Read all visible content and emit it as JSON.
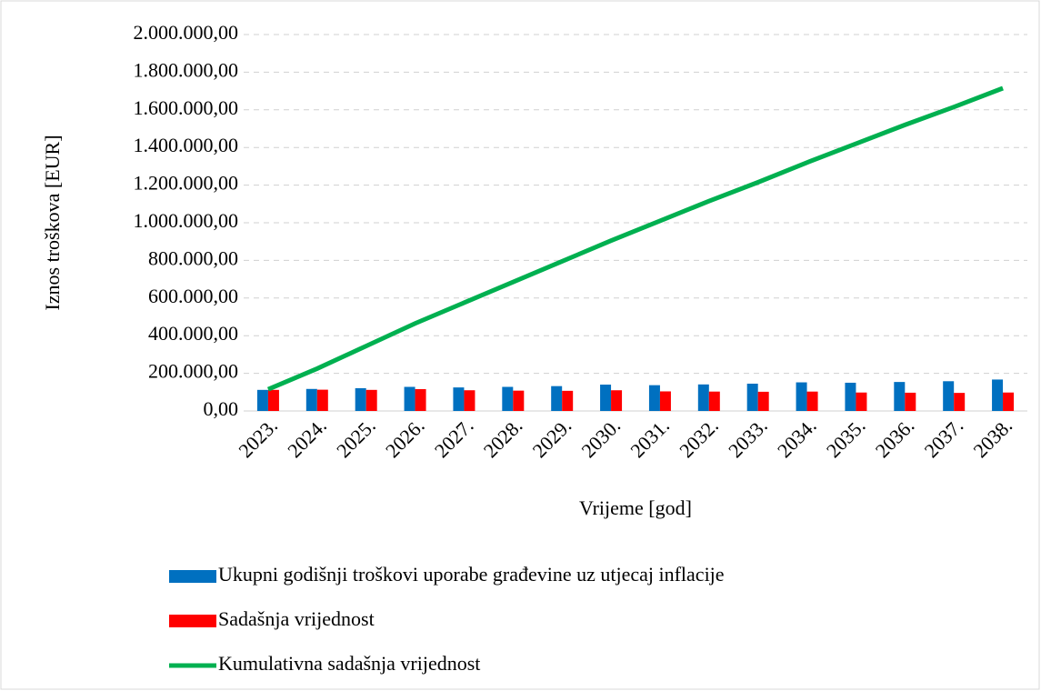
{
  "chart_data": {
    "type": "bar_line",
    "x_axis_label": "Vrijeme [god]",
    "y_axis_label": "Iznos troškova [EUR]",
    "categories": [
      "2023.",
      "2024.",
      "2025.",
      "2026.",
      "2027.",
      "2028.",
      "2029.",
      "2030.",
      "2031.",
      "2032.",
      "2033.",
      "2034.",
      "2035.",
      "2036.",
      "2037.",
      "2038."
    ],
    "series": [
      {
        "name": "Ukupni godišnji troškovi uporabe građevine uz utjecaj inflacije",
        "type": "bar",
        "color": "#0070c0",
        "values": [
          112000,
          117000,
          121000,
          128000,
          125000,
          128000,
          132000,
          140000,
          137000,
          141000,
          145000,
          152000,
          150000,
          154000,
          158000,
          167000
        ]
      },
      {
        "name": "Sadašnja vrijednost",
        "type": "bar",
        "color": "#ff0000",
        "values": [
          112000,
          113000,
          112000,
          116000,
          110000,
          108000,
          107000,
          110000,
          104000,
          103000,
          102000,
          103000,
          98000,
          97000,
          96000,
          98000
        ]
      },
      {
        "name": "Kumulativna sadašnja vrijednost",
        "type": "line",
        "color": "#00b050",
        "values": [
          115000,
          225000,
          345000,
          465000,
          575000,
          685000,
          795000,
          905000,
          1010000,
          1115000,
          1215000,
          1320000,
          1420000,
          1520000,
          1615000,
          1715000
        ]
      }
    ],
    "ylim": [
      0,
      2000000
    ],
    "yticks": [
      {
        "value": 0,
        "label": "0,00"
      },
      {
        "value": 200000,
        "label": "200.000,00"
      },
      {
        "value": 400000,
        "label": "400.000,00"
      },
      {
        "value": 600000,
        "label": "600.000,00"
      },
      {
        "value": 800000,
        "label": "800.000,00"
      },
      {
        "value": 1000000,
        "label": "1.000.000,00"
      },
      {
        "value": 1200000,
        "label": "1.200.000,00"
      },
      {
        "value": 1400000,
        "label": "1.400.000,00"
      },
      {
        "value": 1600000,
        "label": "1.600.000,00"
      },
      {
        "value": 1800000,
        "label": "1.800.000,00"
      },
      {
        "value": 2000000,
        "label": "2.000.000,00"
      }
    ],
    "grid": true,
    "legend": "bottom"
  }
}
